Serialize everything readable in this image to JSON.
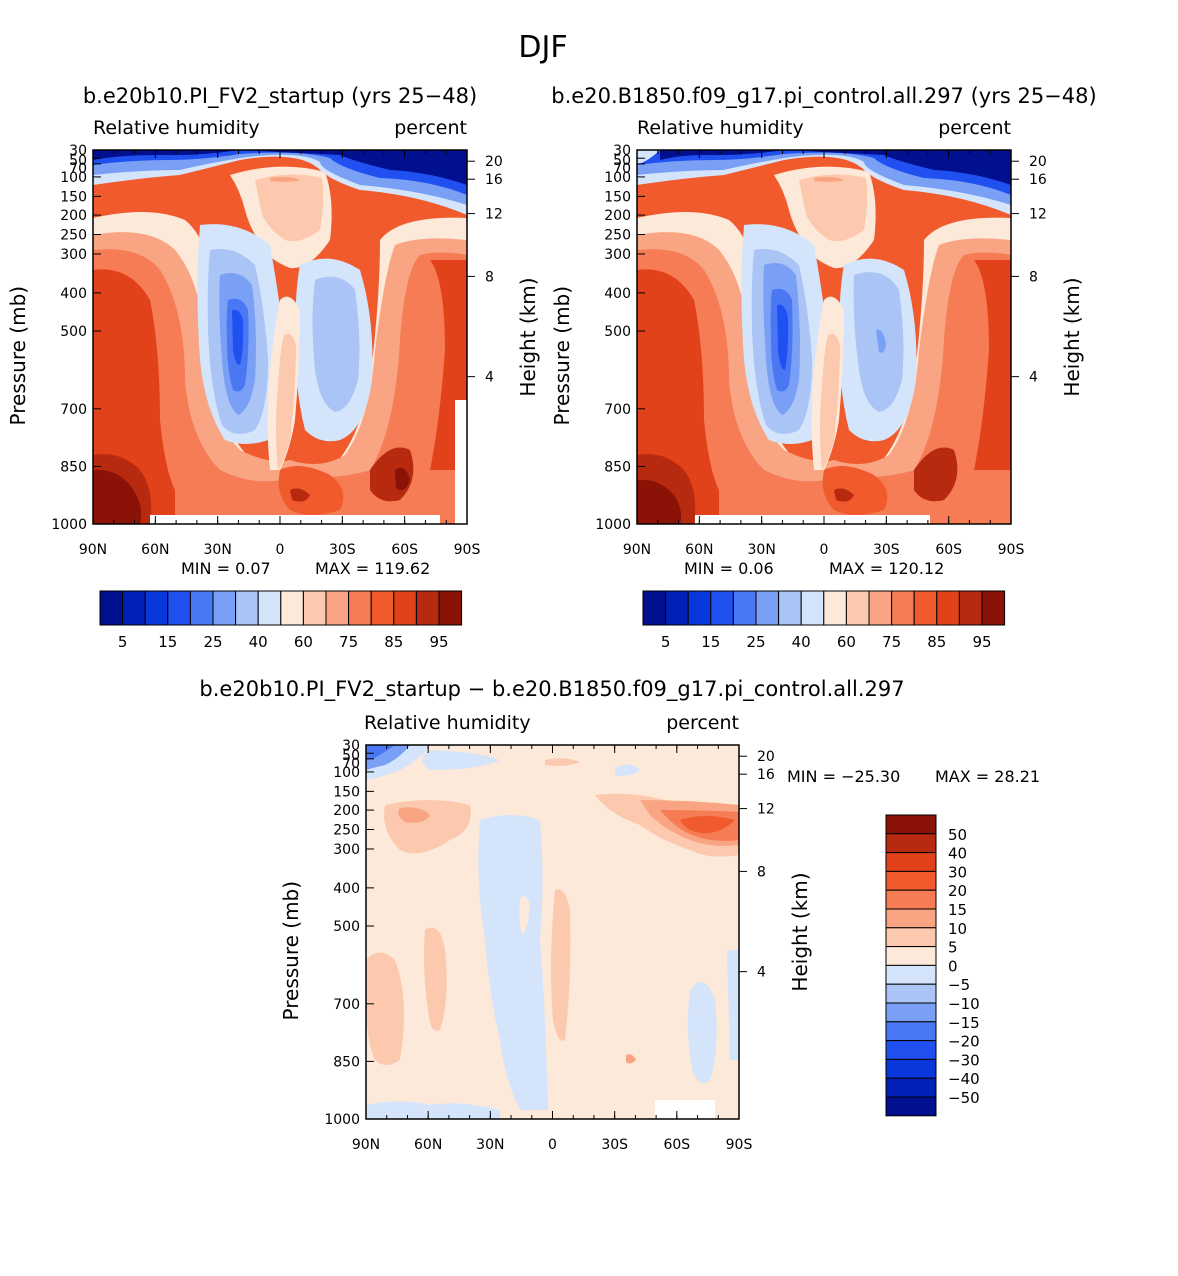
{
  "figure": {
    "season": "DJF"
  },
  "chart_data": [
    {
      "type": "heatmap",
      "title": "b.e20b10.PI_FV2_startup (yrs 25−48)",
      "variable": "Relative humidity",
      "units": "percent",
      "ylabel": "Pressure (mb)",
      "ylabel_right": "Height (km)",
      "x_ticks": [
        "90N",
        "60N",
        "30N",
        "0",
        "30S",
        "60S",
        "90S"
      ],
      "y_ticks": [
        "30",
        "50",
        "70",
        "100",
        "150",
        "200",
        "250",
        "300",
        "400",
        "500",
        "700",
        "850",
        "1000"
      ],
      "y_ticks_right": [
        "20",
        "16",
        "12",
        "8",
        "4"
      ],
      "min_label": "MIN = 0.07",
      "max_label": "MAX = 119.62",
      "colorbar_labels": [
        "5",
        "15",
        "25",
        "40",
        "60",
        "75",
        "85",
        "95"
      ]
    },
    {
      "type": "heatmap",
      "title": "b.e20.B1850.f09_g17.pi_control.all.297 (yrs 25−48)",
      "variable": "Relative humidity",
      "units": "percent",
      "ylabel": "Pressure (mb)",
      "ylabel_right": "Height (km)",
      "x_ticks": [
        "90N",
        "60N",
        "30N",
        "0",
        "30S",
        "60S",
        "90S"
      ],
      "y_ticks": [
        "30",
        "50",
        "70",
        "100",
        "150",
        "200",
        "250",
        "300",
        "400",
        "500",
        "700",
        "850",
        "1000"
      ],
      "y_ticks_right": [
        "20",
        "16",
        "12",
        "8",
        "4"
      ],
      "min_label": "MIN = 0.06",
      "max_label": "MAX = 120.12",
      "colorbar_labels": [
        "5",
        "15",
        "25",
        "40",
        "60",
        "75",
        "85",
        "95"
      ]
    },
    {
      "type": "heatmap",
      "title": "b.e20b10.PI_FV2_startup − b.e20.B1850.f09_g17.pi_control.all.297",
      "variable": "Relative humidity",
      "units": "percent",
      "ylabel": "Pressure (mb)",
      "ylabel_right": "Height (km)",
      "x_ticks": [
        "90N",
        "60N",
        "30N",
        "0",
        "30S",
        "60S",
        "90S"
      ],
      "y_ticks": [
        "30",
        "50",
        "70",
        "100",
        "150",
        "200",
        "250",
        "300",
        "400",
        "500",
        "700",
        "850",
        "1000"
      ],
      "y_ticks_right": [
        "20",
        "16",
        "12",
        "8",
        "4"
      ],
      "min_label": "MIN = −25.30",
      "max_label": "MAX = 28.21",
      "colorbar_labels": [
        "50",
        "40",
        "30",
        "20",
        "15",
        "10",
        "5",
        "0",
        "−5",
        "−10",
        "−15",
        "−20",
        "−30",
        "−40",
        "−50"
      ]
    }
  ],
  "colors": {
    "blues": [
      "#00108f",
      "#0020b8",
      "#0838dc",
      "#2050f0",
      "#4a78f5",
      "#7aa0f5",
      "#aac4f5",
      "#d4e4fa"
    ],
    "reds": [
      "#fde9d9",
      "#fcc9ae",
      "#f9a482",
      "#f57c55",
      "#f05a2d",
      "#e2421a",
      "#b82a10",
      "#8a1206"
    ]
  }
}
